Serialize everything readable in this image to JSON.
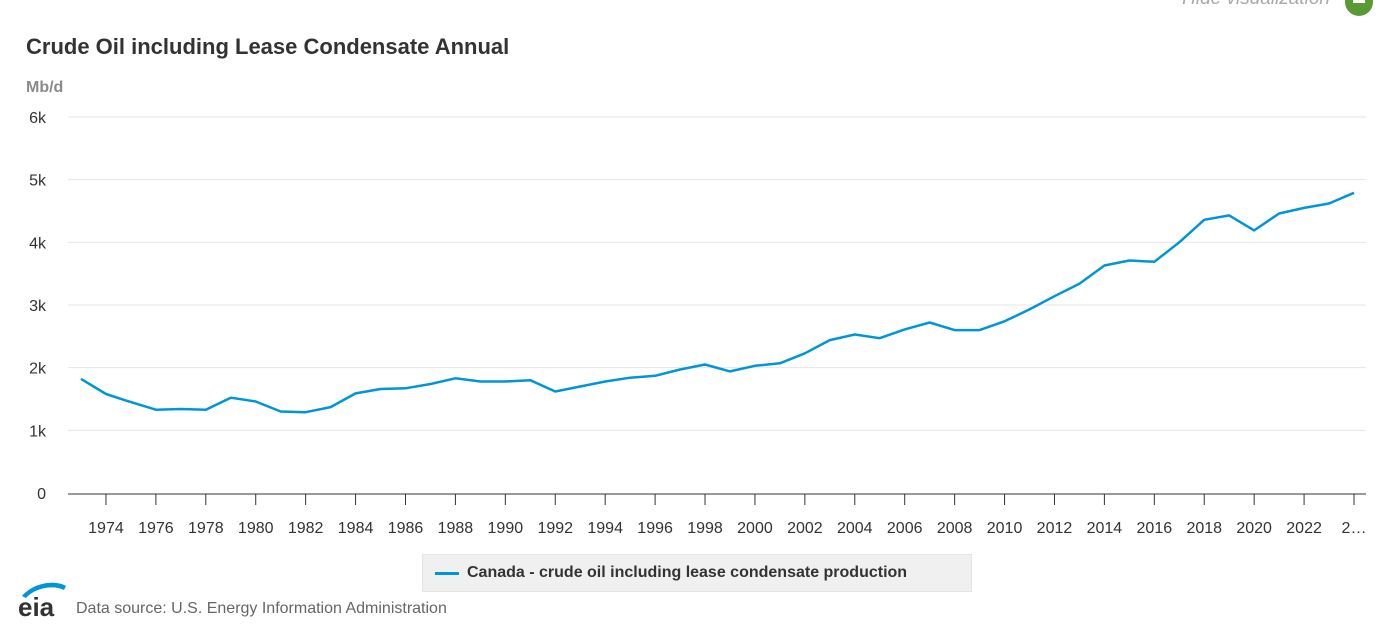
{
  "controls": {
    "hide_visualization_label": "Hide visualization",
    "hide_button_icon": "minus-icon"
  },
  "header": {
    "title": "Crude Oil including Lease Condensate Annual",
    "unit": "Mb/d"
  },
  "footer": {
    "logo_text": "eia",
    "source": "Data source: U.S. Energy Information Administration"
  },
  "colors": {
    "series": "#0096d6",
    "grid": "#e6e6e6",
    "axis": "#333333",
    "hide_button": "#5a9a34"
  },
  "chart_data": {
    "type": "line",
    "title": "Crude Oil including Lease Condensate Annual",
    "xlabel": "",
    "ylabel": "Mb/d",
    "ylim": [
      0,
      6000
    ],
    "xlim": [
      1973,
      2024
    ],
    "grid": true,
    "legend_position": "bottom-center",
    "y_ticks": [
      {
        "value": 0,
        "label": "0"
      },
      {
        "value": 1000,
        "label": "1k"
      },
      {
        "value": 2000,
        "label": "2k"
      },
      {
        "value": 3000,
        "label": "3k"
      },
      {
        "value": 4000,
        "label": "4k"
      },
      {
        "value": 5000,
        "label": "5k"
      },
      {
        "value": 6000,
        "label": "6k"
      }
    ],
    "x_ticks": [
      {
        "value": 1974,
        "label": "1974"
      },
      {
        "value": 1976,
        "label": "1976"
      },
      {
        "value": 1978,
        "label": "1978"
      },
      {
        "value": 1980,
        "label": "1980"
      },
      {
        "value": 1982,
        "label": "1982"
      },
      {
        "value": 1984,
        "label": "1984"
      },
      {
        "value": 1986,
        "label": "1986"
      },
      {
        "value": 1988,
        "label": "1988"
      },
      {
        "value": 1990,
        "label": "1990"
      },
      {
        "value": 1992,
        "label": "1992"
      },
      {
        "value": 1994,
        "label": "1994"
      },
      {
        "value": 1996,
        "label": "1996"
      },
      {
        "value": 1998,
        "label": "1998"
      },
      {
        "value": 2000,
        "label": "2000"
      },
      {
        "value": 2002,
        "label": "2002"
      },
      {
        "value": 2004,
        "label": "2004"
      },
      {
        "value": 2006,
        "label": "2006"
      },
      {
        "value": 2008,
        "label": "2008"
      },
      {
        "value": 2010,
        "label": "2010"
      },
      {
        "value": 2012,
        "label": "2012"
      },
      {
        "value": 2014,
        "label": "2014"
      },
      {
        "value": 2016,
        "label": "2016"
      },
      {
        "value": 2018,
        "label": "2018"
      },
      {
        "value": 2020,
        "label": "2020"
      },
      {
        "value": 2022,
        "label": "2022"
      },
      {
        "value": 2024,
        "label": "2…"
      }
    ],
    "x": [
      1973,
      1974,
      1975,
      1976,
      1977,
      1978,
      1979,
      1980,
      1981,
      1982,
      1983,
      1984,
      1985,
      1986,
      1987,
      1988,
      1989,
      1990,
      1991,
      1992,
      1993,
      1994,
      1995,
      1996,
      1997,
      1998,
      1999,
      2000,
      2001,
      2002,
      2003,
      2004,
      2005,
      2006,
      2007,
      2008,
      2009,
      2010,
      2011,
      2012,
      2013,
      2014,
      2015,
      2016,
      2017,
      2018,
      2019,
      2020,
      2021,
      2022,
      2023,
      2024
    ],
    "series": [
      {
        "name": "Canada - crude oil including lease condensate production",
        "values": [
          1820,
          1580,
          1450,
          1330,
          1340,
          1330,
          1520,
          1460,
          1300,
          1290,
          1370,
          1590,
          1660,
          1670,
          1740,
          1830,
          1780,
          1780,
          1800,
          1620,
          1700,
          1780,
          1840,
          1870,
          1970,
          2050,
          1940,
          2030,
          2070,
          2230,
          2440,
          2530,
          2470,
          2610,
          2720,
          2600,
          2600,
          2740,
          2930,
          3140,
          3340,
          3630,
          3710,
          3690,
          4000,
          4360,
          4430,
          4190,
          4460,
          4550,
          4620,
          4790
        ]
      }
    ]
  }
}
